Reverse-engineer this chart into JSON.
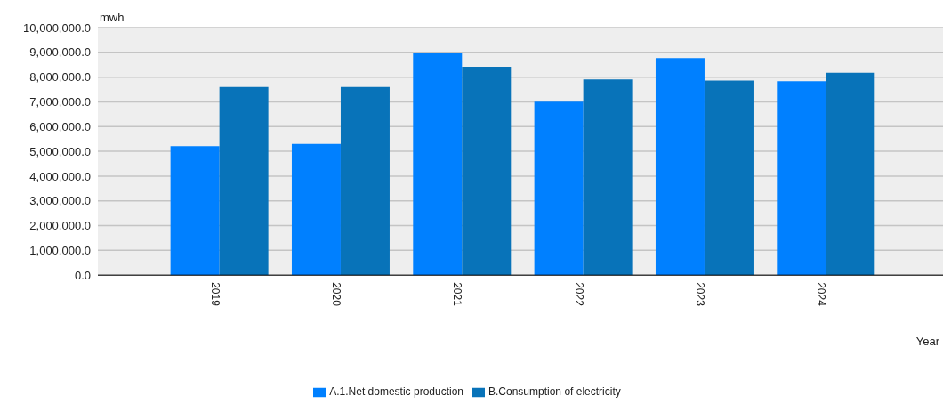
{
  "chart_data": {
    "type": "bar",
    "ylabel": "mwh",
    "xlabel": "Year",
    "categories": [
      "2019",
      "2020",
      "2021",
      "2022",
      "2023",
      "2024"
    ],
    "series": [
      {
        "name": "A.1.Net domestic production",
        "color": "#0080ff",
        "values": [
          5210000,
          5300000,
          8980000,
          7010000,
          8770000,
          7830000
        ]
      },
      {
        "name": "B.Consumption of electricity",
        "color": "#0873b9",
        "values": [
          7600000,
          7600000,
          8420000,
          7910000,
          7860000,
          8180000
        ]
      }
    ],
    "ylim": [
      0,
      10000000
    ],
    "yticks": [
      {
        "value": 0,
        "label": "0.0"
      },
      {
        "value": 1000000,
        "label": "1,000,000.0"
      },
      {
        "value": 2000000,
        "label": "2,000,000.0"
      },
      {
        "value": 3000000,
        "label": "3,000,000.0"
      },
      {
        "value": 4000000,
        "label": "4,000,000.0"
      },
      {
        "value": 5000000,
        "label": "5,000,000.0"
      },
      {
        "value": 6000000,
        "label": "6,000,000.0"
      },
      {
        "value": 7000000,
        "label": "7,000,000.0"
      },
      {
        "value": 8000000,
        "label": "8,000,000.0"
      },
      {
        "value": 9000000,
        "label": "9,000,000.0"
      },
      {
        "value": 10000000,
        "label": "10,000,000.0"
      }
    ],
    "grid": "y",
    "legend": "bottom"
  }
}
